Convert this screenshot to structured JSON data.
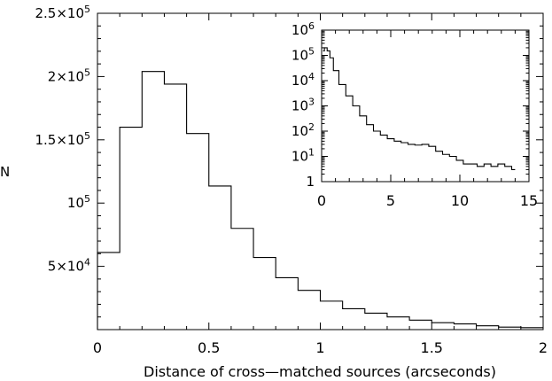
{
  "chart_data": [
    {
      "type": "bar",
      "histogram": true,
      "xlabel": "Distance of cross—matched sources (arcseconds)",
      "ylabel": "N",
      "xlim": [
        0,
        2
      ],
      "ylim": [
        0,
        250000
      ],
      "x_ticks": [
        {
          "v": 0,
          "label": "0"
        },
        {
          "v": 0.5,
          "label": "0.5"
        },
        {
          "v": 1,
          "label": "1"
        },
        {
          "v": 1.5,
          "label": "1.5"
        },
        {
          "v": 2,
          "label": "2"
        }
      ],
      "y_ticks": [
        {
          "v": 50000,
          "mant": "5×10",
          "exp": "4"
        },
        {
          "v": 100000,
          "mant": "10",
          "exp": "5"
        },
        {
          "v": 150000,
          "mant": "1.5×10",
          "exp": "5"
        },
        {
          "v": 200000,
          "mant": "2×10",
          "exp": "5"
        },
        {
          "v": 250000,
          "mant": "2.5×10",
          "exp": "5"
        }
      ],
      "bin_edges": [
        0,
        0.1,
        0.2,
        0.3,
        0.4,
        0.5,
        0.6,
        0.7,
        0.8,
        0.9,
        1.0,
        1.1,
        1.2,
        1.3,
        1.4,
        1.5,
        1.6,
        1.7,
        1.8,
        1.9,
        2.0
      ],
      "counts": [
        61000,
        160000,
        204000,
        194000,
        155000,
        113500,
        80000,
        57000,
        41000,
        31000,
        22500,
        16500,
        13000,
        10000,
        7500,
        5500,
        4500,
        3000,
        2000,
        1500
      ]
    },
    {
      "type": "line",
      "inset": true,
      "yscale": "log",
      "xlim": [
        0,
        15
      ],
      "ylim": [
        1,
        1000000
      ],
      "x_ticks": [
        {
          "v": 0,
          "label": "0"
        },
        {
          "v": 5,
          "label": "5"
        },
        {
          "v": 10,
          "label": "10"
        },
        {
          "v": 15,
          "label": "15"
        }
      ],
      "y_ticks": [
        {
          "v": 1,
          "mant": "1",
          "exp": ""
        },
        {
          "v": 10,
          "mant": "10",
          "exp": "1"
        },
        {
          "v": 100,
          "mant": "10",
          "exp": "2"
        },
        {
          "v": 1000,
          "mant": "10",
          "exp": "3"
        },
        {
          "v": 10000,
          "mant": "10",
          "exp": "4"
        },
        {
          "v": 100000,
          "mant": "10",
          "exp": "5"
        },
        {
          "v": 1000000,
          "mant": "10",
          "exp": "6"
        }
      ],
      "x": [
        0.1,
        0.3,
        0.5,
        0.7,
        1.0,
        1.5,
        2.0,
        2.5,
        3.0,
        3.5,
        4.0,
        4.5,
        5.0,
        5.5,
        6.0,
        6.5,
        7.0,
        7.5,
        8.0,
        8.5,
        9.0,
        9.5,
        10.0,
        10.5,
        11.0,
        11.5,
        12.0,
        12.5,
        13.0,
        13.5,
        14.0
      ],
      "y": [
        150000,
        200000,
        150000,
        80000,
        25000,
        7000,
        2500,
        1000,
        400,
        180,
        100,
        70,
        50,
        40,
        35,
        30,
        28,
        30,
        25,
        16,
        12,
        10,
        7,
        5,
        5,
        4,
        5,
        4,
        5,
        4,
        3
      ]
    }
  ]
}
